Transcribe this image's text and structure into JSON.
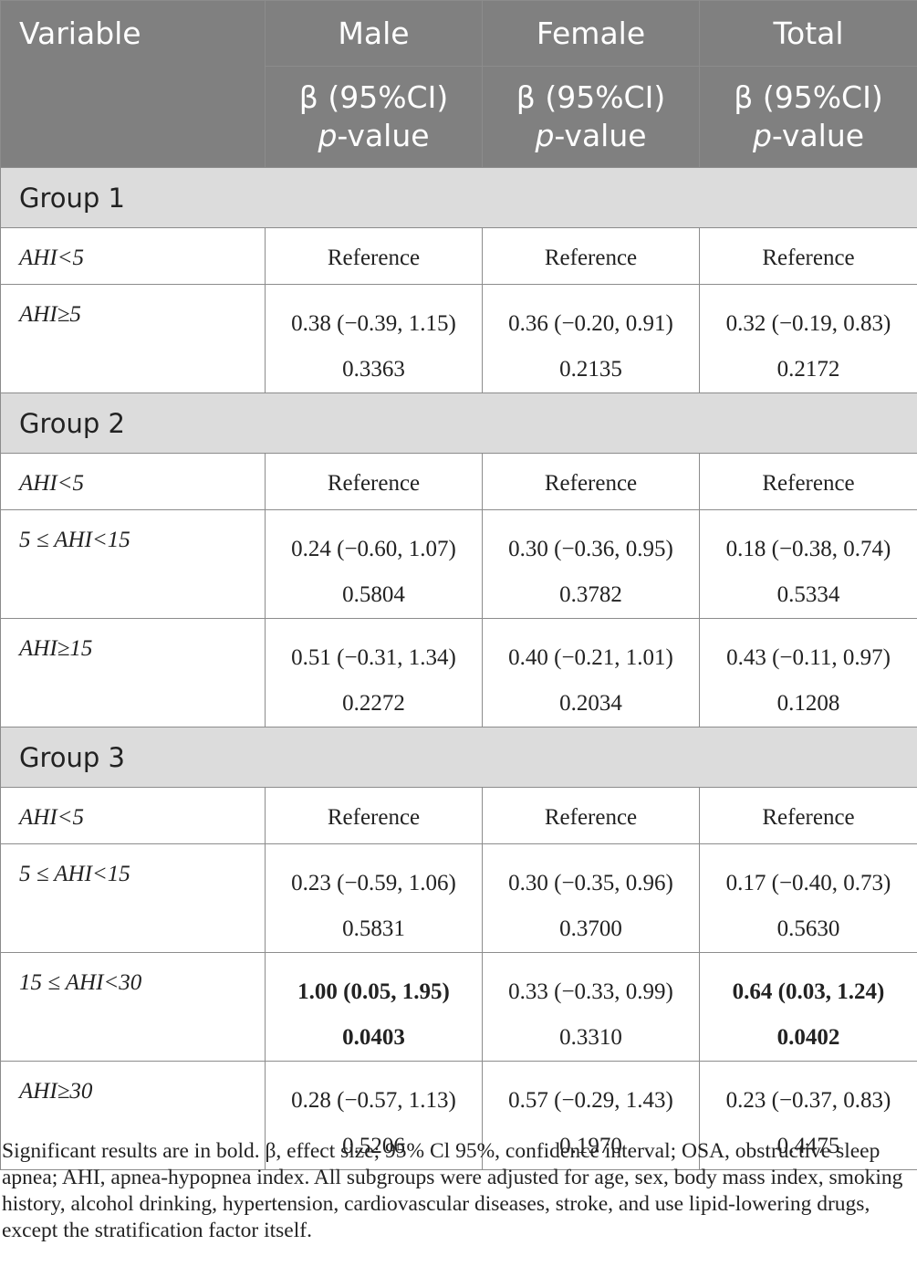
{
  "table": {
    "header": {
      "variable": "Variable",
      "columns": [
        "Male",
        "Female",
        "Total"
      ],
      "beta": "β (95%CI)",
      "pvalue_italic": "p",
      "pvalue_rest": "-value"
    },
    "groups": [
      {
        "title": "Group 1",
        "rows": [
          {
            "label": "AHI<5",
            "male": "Reference",
            "female": "Reference",
            "total": "Reference"
          },
          {
            "label": "AHI≥5",
            "male": "0.38 (−0.39, 1.15) 0.3363",
            "female": "0.36 (−0.20, 0.91) 0.2135",
            "total": "0.32 (−0.19, 0.83) 0.2172"
          }
        ]
      },
      {
        "title": "Group 2",
        "rows": [
          {
            "label": "AHI<5",
            "male": "Reference",
            "female": "Reference",
            "total": "Reference"
          },
          {
            "label": "5 ≤ AHI<15",
            "male": "0.24 (−0.60, 1.07) 0.5804",
            "female": "0.30 (−0.36, 0.95) 0.3782",
            "total": "0.18 (−0.38, 0.74) 0.5334"
          },
          {
            "label": "AHI≥15",
            "male": "0.51 (−0.31, 1.34) 0.2272",
            "female": "0.40 (−0.21, 1.01) 0.2034",
            "total": "0.43 (−0.11, 0.97) 0.1208"
          }
        ]
      },
      {
        "title": "Group 3",
        "rows": [
          {
            "label": "AHI<5",
            "male": "Reference",
            "female": "Reference",
            "total": "Reference"
          },
          {
            "label": "5 ≤ AHI<15",
            "male": "0.23 (−0.59, 1.06) 0.5831",
            "female": "0.30 (−0.35, 0.96) 0.3700",
            "total": "0.17 (−0.40, 0.73) 0.5630"
          },
          {
            "label": "15 ≤ AHI<30",
            "male": "1.00 (0.05, 1.95) 0.0403",
            "female": "0.33 (−0.33, 0.99) 0.3310",
            "total": "0.64 (0.03, 1.24) 0.0402"
          },
          {
            "label": "AHI≥30",
            "male": "0.28 (−0.57, 1.13) 0.5206",
            "female": "0.57 (−0.29, 1.43) 0.1970",
            "total": "0.23 (−0.37, 0.83) 0.4475"
          }
        ]
      }
    ]
  },
  "footnote": "Significant results are in bold. β, effect size; 95% Cl 95%, confidence interval; OSA, obstructive sleep apnea; AHI, apnea-hypopnea index. All subgroups were adjusted for age, sex, body mass index, smoking history, alcohol drinking, hypertension, cardiovascular diseases, stroke, and use lipid-lowering drugs, except the stratification factor itself."
}
